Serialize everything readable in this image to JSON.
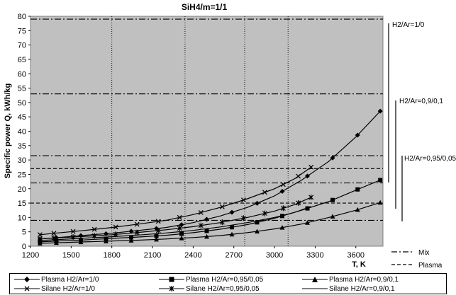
{
  "chart_data": {
    "type": "line",
    "title": "SiH4/m=1/1",
    "xlabel": "T, K",
    "ylabel": "Specific power Q,  kWh/kg",
    "xlim": [
      1200,
      3800
    ],
    "ylim": [
      0,
      80
    ],
    "xticks": [
      "1200",
      "1500",
      "1800",
      "2100",
      "2400",
      "2700",
      "3000",
      "3300",
      "3600"
    ],
    "yticks": [
      "0",
      "5",
      "10",
      "15",
      "20",
      "25",
      "30",
      "35",
      "40",
      "45",
      "50",
      "55",
      "60",
      "65",
      "70",
      "75",
      "80"
    ],
    "grid": false,
    "background": "#c0c0c0",
    "vertical_dotted_lines_x": [
      1800,
      2340,
      2780,
      3100
    ],
    "mix_lines_y": [
      9,
      22,
      31.5,
      53,
      79
    ],
    "plasma_lines_y": [
      15,
      27
    ],
    "series": [
      {
        "name": "Plasma H2/Ar=1/0",
        "marker": "diamond",
        "x": [
          1270,
          1400,
          1600,
          1800,
          2000,
          2200,
          2400,
          2600,
          2800,
          3000,
          3200,
          3400,
          3600,
          3780
        ],
        "y": [
          2.5,
          3.0,
          3.8,
          4.5,
          5.5,
          6.5,
          8.2,
          10.5,
          13.5,
          17.5,
          23,
          29.5,
          38,
          47
        ]
      },
      {
        "name": "Plasma H2/Ar=0,95/0,05",
        "marker": "square",
        "x": [
          1270,
          1400,
          1600,
          1800,
          2000,
          2200,
          2400,
          2600,
          2800,
          3000,
          3200,
          3400,
          3600,
          3780
        ],
        "y": [
          1.5,
          1.8,
          2.2,
          2.7,
          3.2,
          3.8,
          4.7,
          5.9,
          7.5,
          9.7,
          12.5,
          15.5,
          19.5,
          23
        ]
      },
      {
        "name": "Plasma H2/Ar=0,9/0,1",
        "marker": "triangle",
        "x": [
          1270,
          1400,
          1600,
          1800,
          2000,
          2200,
          2400,
          2600,
          2800,
          3000,
          3200,
          3400,
          3600,
          3780
        ],
        "y": [
          1.0,
          1.2,
          1.5,
          1.8,
          2.1,
          2.5,
          3.0,
          3.7,
          4.7,
          6.0,
          7.7,
          10.0,
          12.5,
          15.2
        ]
      },
      {
        "name": "Silane H2/Ar=1/0",
        "marker": "x",
        "x": [
          1270,
          1400,
          1600,
          1800,
          2000,
          2200,
          2400,
          2600,
          2800,
          3000,
          3150,
          3270
        ],
        "y": [
          4.0,
          4.6,
          5.5,
          6.5,
          7.7,
          9.0,
          11.0,
          13.5,
          16.5,
          20.0,
          23.5,
          27.5
        ]
      },
      {
        "name": "Silane H2/Ar=0,95/0,05",
        "marker": "star",
        "x": [
          1270,
          1400,
          1600,
          1800,
          2000,
          2200,
          2400,
          2600,
          2800,
          3000,
          3150,
          3270
        ],
        "y": [
          2.5,
          2.9,
          3.4,
          4.0,
          4.8,
          5.7,
          6.8,
          8.2,
          10.0,
          12.2,
          14.5,
          17.0
        ]
      },
      {
        "name": "Silane H2/Ar=0,9/0,1",
        "marker": "none",
        "x": [
          1270,
          1400,
          1600,
          1800,
          2000,
          2200,
          2400,
          2600,
          2800,
          3000,
          3150,
          3270
        ],
        "y": [
          2.0,
          2.3,
          2.8,
          3.3,
          3.9,
          4.6,
          5.5,
          6.7,
          8.2,
          10.0,
          11.8,
          13.8
        ]
      }
    ],
    "side_annotations": [
      {
        "label": "H2/Ar=1/0"
      },
      {
        "label": "H2/Ar=0,9/0,1"
      },
      {
        "label": "H2/Ar=0,95/0,05"
      }
    ],
    "key": [
      {
        "label": "Mix",
        "style": "dash-dot"
      },
      {
        "label": "Plasma",
        "style": "dashed"
      }
    ]
  }
}
